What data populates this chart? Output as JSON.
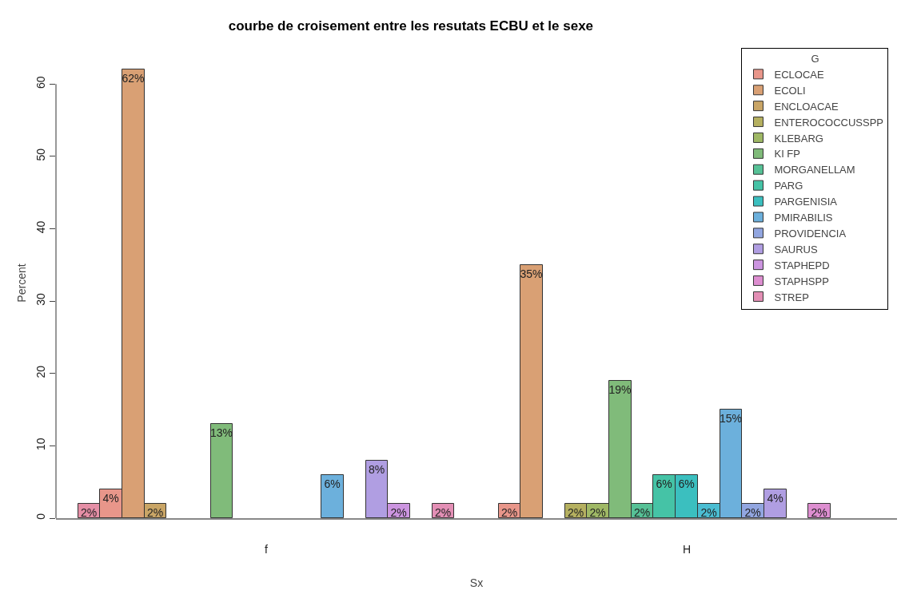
{
  "chart_data": {
    "type": "bar",
    "title": "courbe de croisement entre les resutats ECBU et le sexe",
    "xlabel": "Sx",
    "ylabel": "Percent",
    "legend_title": "G",
    "legend": "top right",
    "categories": [
      null,
      null,
      null,
      null,
      null,
      null,
      null,
      null,
      "f",
      null,
      null,
      null,
      null,
      null,
      null,
      null,
      null,
      null,
      null,
      null,
      null,
      null,
      null,
      null,
      null,
      null,
      null,
      "H",
      null,
      null,
      null,
      null,
      null,
      null,
      null,
      null
    ],
    "ylim": [
      0,
      65
    ],
    "yticks": [
      0,
      10,
      20,
      30,
      40,
      50,
      60
    ],
    "series": [
      {
        "color": "#e58fa6",
        "values": [
          2,
          null,
          null,
          null,
          null,
          null,
          null,
          null,
          null,
          null,
          null,
          null,
          null,
          null,
          null,
          null,
          null,
          null,
          null,
          null,
          null,
          null,
          null,
          null,
          null,
          null,
          null,
          null,
          null,
          null,
          null,
          null,
          null,
          null,
          null,
          null
        ],
        "value_labels": [
          "2%",
          null,
          null,
          null,
          null,
          null,
          null,
          null,
          null,
          null,
          null,
          null,
          null,
          null,
          null,
          null,
          null,
          null,
          null,
          null,
          null,
          null,
          null,
          null,
          null,
          null,
          null,
          null,
          null,
          null,
          null,
          null,
          null,
          null,
          null,
          null
        ]
      },
      {
        "name": "ECLOCAE",
        "color": "#e8968a",
        "values": [
          null,
          4,
          null,
          null,
          null,
          null,
          null,
          null,
          null,
          null,
          null,
          null,
          null,
          null,
          null,
          null,
          null,
          null,
          null,
          2,
          null,
          null,
          null,
          null,
          null,
          null,
          null,
          null,
          null,
          null,
          null,
          null,
          null,
          null,
          null,
          null
        ],
        "value_labels": [
          null,
          "4%",
          null,
          null,
          null,
          null,
          null,
          null,
          null,
          null,
          null,
          null,
          null,
          null,
          null,
          null,
          null,
          null,
          null,
          "2%",
          null,
          null,
          null,
          null,
          null,
          null,
          null,
          null,
          null,
          null,
          null,
          null,
          null,
          null,
          null,
          null
        ]
      },
      {
        "name": "ECOLI",
        "color": "#d9a074",
        "values": [
          null,
          null,
          62,
          null,
          null,
          null,
          null,
          null,
          null,
          null,
          null,
          null,
          null,
          null,
          null,
          null,
          null,
          null,
          null,
          null,
          35,
          null,
          null,
          null,
          null,
          null,
          null,
          null,
          null,
          null,
          null,
          null,
          null,
          null,
          null,
          null
        ],
        "value_labels": [
          null,
          null,
          "62%",
          null,
          null,
          null,
          null,
          null,
          null,
          null,
          null,
          null,
          null,
          null,
          null,
          null,
          null,
          null,
          null,
          null,
          "35%",
          null,
          null,
          null,
          null,
          null,
          null,
          null,
          null,
          null,
          null,
          null,
          null,
          null,
          null,
          null
        ]
      },
      {
        "name": "ENCLOACAE",
        "color": "#c9a566",
        "values": [
          null,
          null,
          null,
          2,
          null,
          null,
          null,
          null,
          null,
          null,
          null,
          null,
          null,
          null,
          null,
          null,
          null,
          null,
          null,
          null,
          null,
          null,
          null,
          null,
          null,
          null,
          null,
          null,
          null,
          null,
          null,
          null,
          null,
          null,
          null,
          null
        ],
        "value_labels": [
          null,
          null,
          null,
          "2%",
          null,
          null,
          null,
          null,
          null,
          null,
          null,
          null,
          null,
          null,
          null,
          null,
          null,
          null,
          null,
          null,
          null,
          null,
          null,
          null,
          null,
          null,
          null,
          null,
          null,
          null,
          null,
          null,
          null,
          null,
          null,
          null
        ]
      },
      {
        "name": "ENTEROCOCCUSSPP",
        "color": "#b5b060",
        "values": [
          null,
          null,
          null,
          null,
          null,
          null,
          null,
          null,
          null,
          null,
          null,
          null,
          null,
          null,
          null,
          null,
          null,
          null,
          null,
          null,
          null,
          null,
          2,
          null,
          null,
          null,
          null,
          null,
          null,
          null,
          null,
          null,
          null,
          null,
          null,
          null
        ],
        "value_labels": [
          null,
          null,
          null,
          null,
          null,
          null,
          null,
          null,
          null,
          null,
          null,
          null,
          null,
          null,
          null,
          null,
          null,
          null,
          null,
          null,
          null,
          null,
          "2%",
          null,
          null,
          null,
          null,
          null,
          null,
          null,
          null,
          null,
          null,
          null,
          null,
          null
        ]
      },
      {
        "name": "KLEBARG",
        "color": "#9fb865",
        "values": [
          null,
          null,
          null,
          null,
          null,
          null,
          null,
          null,
          null,
          null,
          null,
          null,
          null,
          null,
          null,
          null,
          null,
          null,
          null,
          null,
          null,
          null,
          null,
          2,
          null,
          null,
          null,
          null,
          null,
          null,
          null,
          null,
          null,
          null,
          null,
          null
        ],
        "value_labels": [
          null,
          null,
          null,
          null,
          null,
          null,
          null,
          null,
          null,
          null,
          null,
          null,
          null,
          null,
          null,
          null,
          null,
          null,
          null,
          null,
          null,
          null,
          null,
          "2%",
          null,
          null,
          null,
          null,
          null,
          null,
          null,
          null,
          null,
          null,
          null,
          null
        ]
      },
      {
        "name": "KI FP",
        "color": "#80bb7a",
        "values": [
          null,
          null,
          null,
          null,
          null,
          null,
          13,
          null,
          null,
          null,
          null,
          null,
          null,
          null,
          null,
          null,
          null,
          null,
          null,
          null,
          null,
          null,
          null,
          null,
          19,
          null,
          null,
          null,
          null,
          null,
          null,
          null,
          null,
          null,
          null,
          null
        ],
        "value_labels": [
          null,
          null,
          null,
          null,
          null,
          null,
          "13%",
          null,
          null,
          null,
          null,
          null,
          null,
          null,
          null,
          null,
          null,
          null,
          null,
          null,
          null,
          null,
          null,
          null,
          "19%",
          null,
          null,
          null,
          null,
          null,
          null,
          null,
          null,
          null,
          null,
          null
        ]
      },
      {
        "name": "MORGANELLAM",
        "color": "#56c196",
        "values": [
          null,
          null,
          null,
          null,
          null,
          null,
          null,
          null,
          null,
          null,
          null,
          null,
          null,
          null,
          null,
          null,
          null,
          null,
          null,
          null,
          null,
          null,
          null,
          null,
          null,
          2,
          null,
          null,
          null,
          null,
          null,
          null,
          null,
          null,
          null,
          null
        ],
        "value_labels": [
          null,
          null,
          null,
          null,
          null,
          null,
          null,
          null,
          null,
          null,
          null,
          null,
          null,
          null,
          null,
          null,
          null,
          null,
          null,
          null,
          null,
          null,
          null,
          null,
          null,
          "2%",
          null,
          null,
          null,
          null,
          null,
          null,
          null,
          null,
          null,
          null
        ]
      },
      {
        "name": "PARG",
        "color": "#45c3a6",
        "values": [
          null,
          null,
          null,
          null,
          null,
          null,
          null,
          null,
          null,
          null,
          null,
          null,
          null,
          null,
          null,
          null,
          null,
          null,
          null,
          null,
          null,
          null,
          null,
          null,
          null,
          null,
          6,
          null,
          null,
          null,
          null,
          null,
          null,
          null,
          null,
          null
        ],
        "value_labels": [
          null,
          null,
          null,
          null,
          null,
          null,
          null,
          null,
          null,
          null,
          null,
          null,
          null,
          null,
          null,
          null,
          null,
          null,
          null,
          null,
          null,
          null,
          null,
          null,
          null,
          null,
          "6%",
          null,
          null,
          null,
          null,
          null,
          null,
          null,
          null,
          null
        ]
      },
      {
        "name": "PARGENISIA",
        "color": "#3bbfbf",
        "values": [
          null,
          null,
          null,
          null,
          null,
          null,
          null,
          null,
          null,
          null,
          null,
          null,
          null,
          null,
          null,
          null,
          null,
          null,
          null,
          null,
          null,
          null,
          null,
          null,
          null,
          null,
          null,
          6,
          null,
          null,
          null,
          null,
          null,
          null,
          null,
          null
        ],
        "value_labels": [
          null,
          null,
          null,
          null,
          null,
          null,
          null,
          null,
          null,
          null,
          null,
          null,
          null,
          null,
          null,
          null,
          null,
          null,
          null,
          null,
          null,
          null,
          null,
          null,
          null,
          null,
          null,
          "6%",
          null,
          null,
          null,
          null,
          null,
          null,
          null,
          null
        ]
      },
      {
        "color": "#4bbdd2",
        "values": [
          null,
          null,
          null,
          null,
          null,
          null,
          null,
          null,
          null,
          null,
          null,
          null,
          null,
          null,
          null,
          null,
          null,
          null,
          null,
          null,
          null,
          null,
          null,
          null,
          null,
          null,
          null,
          null,
          2,
          null,
          null,
          null,
          null,
          null,
          null,
          null
        ],
        "value_labels": [
          null,
          null,
          null,
          null,
          null,
          null,
          null,
          null,
          null,
          null,
          null,
          null,
          null,
          null,
          null,
          null,
          null,
          null,
          null,
          null,
          null,
          null,
          null,
          null,
          null,
          null,
          null,
          null,
          "2%",
          null,
          null,
          null,
          null,
          null,
          null,
          null
        ]
      },
      {
        "name": "PMIRABILIS",
        "color": "#6cb0dc",
        "values": [
          null,
          null,
          null,
          null,
          null,
          null,
          null,
          null,
          null,
          null,
          null,
          6,
          null,
          null,
          null,
          null,
          null,
          null,
          null,
          null,
          null,
          null,
          null,
          null,
          null,
          null,
          null,
          null,
          null,
          15,
          null,
          null,
          null,
          null,
          null,
          null
        ],
        "value_labels": [
          null,
          null,
          null,
          null,
          null,
          null,
          null,
          null,
          null,
          null,
          null,
          "6%",
          null,
          null,
          null,
          null,
          null,
          null,
          null,
          null,
          null,
          null,
          null,
          null,
          null,
          null,
          null,
          null,
          null,
          "15%",
          null,
          null,
          null,
          null,
          null,
          null
        ]
      },
      {
        "name": "PROVIDENCIA",
        "color": "#92a6e0",
        "values": [
          null,
          null,
          null,
          null,
          null,
          null,
          null,
          null,
          null,
          null,
          null,
          null,
          null,
          null,
          null,
          null,
          null,
          null,
          null,
          null,
          null,
          null,
          null,
          null,
          null,
          null,
          null,
          null,
          null,
          null,
          2,
          null,
          null,
          null,
          null,
          null
        ],
        "value_labels": [
          null,
          null,
          null,
          null,
          null,
          null,
          null,
          null,
          null,
          null,
          null,
          null,
          null,
          null,
          null,
          null,
          null,
          null,
          null,
          null,
          null,
          null,
          null,
          null,
          null,
          null,
          null,
          null,
          null,
          null,
          "2%",
          null,
          null,
          null,
          null,
          null
        ]
      },
      {
        "name": "SAURUS",
        "color": "#b09ee2",
        "values": [
          null,
          null,
          null,
          null,
          null,
          null,
          null,
          null,
          null,
          null,
          null,
          null,
          null,
          8,
          null,
          null,
          null,
          null,
          null,
          null,
          null,
          null,
          null,
          null,
          null,
          null,
          null,
          null,
          null,
          null,
          null,
          4,
          null,
          null,
          null,
          null
        ],
        "value_labels": [
          null,
          null,
          null,
          null,
          null,
          null,
          null,
          null,
          null,
          null,
          null,
          null,
          null,
          "8%",
          null,
          null,
          null,
          null,
          null,
          null,
          null,
          null,
          null,
          null,
          null,
          null,
          null,
          null,
          null,
          null,
          null,
          "4%",
          null,
          null,
          null,
          null
        ]
      },
      {
        "name": "STAPHEPD",
        "color": "#cc95e0",
        "values": [
          null,
          null,
          null,
          null,
          null,
          null,
          null,
          null,
          null,
          null,
          null,
          null,
          null,
          null,
          2,
          null,
          null,
          null,
          null,
          null,
          null,
          null,
          null,
          null,
          null,
          null,
          null,
          null,
          null,
          null,
          null,
          null,
          null,
          null,
          null,
          null
        ],
        "value_labels": [
          null,
          null,
          null,
          null,
          null,
          null,
          null,
          null,
          null,
          null,
          null,
          null,
          null,
          null,
          "2%",
          null,
          null,
          null,
          null,
          null,
          null,
          null,
          null,
          null,
          null,
          null,
          null,
          null,
          null,
          null,
          null,
          null,
          null,
          null,
          null,
          null
        ]
      },
      {
        "name": "STAPHSPP",
        "color": "#dd8ed0",
        "values": [
          null,
          null,
          null,
          null,
          null,
          null,
          null,
          null,
          null,
          null,
          null,
          null,
          null,
          null,
          null,
          null,
          null,
          null,
          null,
          null,
          null,
          null,
          null,
          null,
          null,
          null,
          null,
          null,
          null,
          null,
          null,
          null,
          null,
          2,
          null,
          null
        ],
        "value_labels": [
          null,
          null,
          null,
          null,
          null,
          null,
          null,
          null,
          null,
          null,
          null,
          null,
          null,
          null,
          null,
          null,
          null,
          null,
          null,
          null,
          null,
          null,
          null,
          null,
          null,
          null,
          null,
          null,
          null,
          null,
          null,
          null,
          null,
          "2%",
          null,
          null
        ]
      },
      {
        "name": "STREP",
        "color": "#e38fb5",
        "values": [
          null,
          null,
          null,
          null,
          null,
          null,
          null,
          null,
          null,
          null,
          null,
          null,
          null,
          null,
          null,
          null,
          2,
          null,
          null,
          null,
          null,
          null,
          null,
          null,
          null,
          null,
          null,
          null,
          null,
          null,
          null,
          null,
          null,
          null,
          null,
          null
        ],
        "value_labels": [
          null,
          null,
          null,
          null,
          null,
          null,
          null,
          null,
          null,
          null,
          null,
          null,
          null,
          null,
          null,
          null,
          "2%",
          null,
          null,
          null,
          null,
          null,
          null,
          null,
          null,
          null,
          null,
          null,
          null,
          null,
          null,
          null,
          null,
          null,
          null,
          null
        ]
      }
    ]
  }
}
